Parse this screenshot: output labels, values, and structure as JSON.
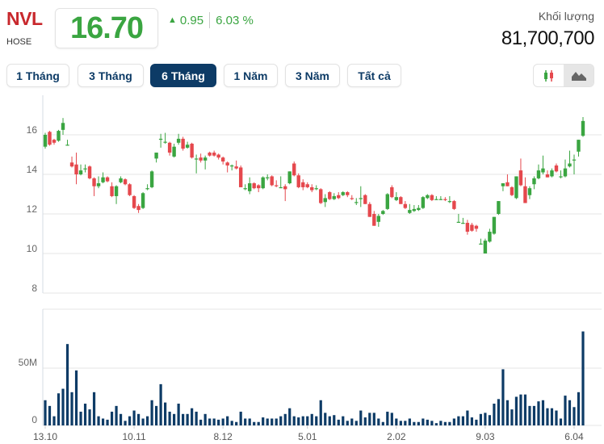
{
  "header": {
    "symbol": "NVL",
    "exchange": "HOSE",
    "price": "16.70",
    "change": "0.95",
    "change_pct": "6.03 %",
    "volume_label": "Khối lượng",
    "volume_value": "81,700,700"
  },
  "ranges": [
    {
      "label": "1 Tháng"
    },
    {
      "label": "3 Tháng"
    },
    {
      "label": "6 Tháng",
      "active": true
    },
    {
      "label": "1 Năm"
    },
    {
      "label": "3 Năm"
    },
    {
      "label": "Tất cả"
    }
  ],
  "chart_types": [
    {
      "icon": "candlestick-icon"
    },
    {
      "icon": "area-chart-icon",
      "active": true
    }
  ],
  "colors": {
    "up": "#3aa541",
    "down": "#e5484d",
    "volume": "#0d3b66",
    "grid": "#e6e6e6"
  },
  "chart_data": {
    "type": "candlestick",
    "price_axis": {
      "ticks": [
        8,
        10,
        12,
        14,
        16
      ],
      "range": [
        8,
        18
      ]
    },
    "volume_axis": {
      "ticks": [
        {
          "v": 0,
          "label": "0"
        },
        {
          "v": 50,
          "label": "50M"
        }
      ],
      "range": [
        0,
        100
      ],
      "unit": "M"
    },
    "x_labels": [
      {
        "i": 0,
        "label": "13.10"
      },
      {
        "i": 20,
        "label": "10.11"
      },
      {
        "i": 40,
        "label": "8.12"
      },
      {
        "i": 59,
        "label": "5.01"
      },
      {
        "i": 79,
        "label": "2.02"
      },
      {
        "i": 99,
        "label": "9.03"
      },
      {
        "i": 119,
        "label": "6.04"
      }
    ],
    "ohlc": [
      [
        15.4,
        16.1,
        15.3,
        16.0
      ],
      [
        16.15,
        16.2,
        15.45,
        15.5
      ],
      [
        15.75,
        15.8,
        15.5,
        15.6
      ],
      [
        15.7,
        16.25,
        15.65,
        16.2
      ],
      [
        16.25,
        16.85,
        16.0,
        16.6
      ],
      [
        15.5,
        15.75,
        15.45,
        15.5
      ],
      [
        14.6,
        14.9,
        14.35,
        14.4
      ],
      [
        14.5,
        15.1,
        13.5,
        14.0
      ],
      [
        14.0,
        14.5,
        13.95,
        14.2
      ],
      [
        14.3,
        14.5,
        14.1,
        14.3
      ],
      [
        14.4,
        14.45,
        13.75,
        13.8
      ],
      [
        13.8,
        13.85,
        12.9,
        13.4
      ],
      [
        13.4,
        13.9,
        13.3,
        13.55
      ],
      [
        13.6,
        14.1,
        13.55,
        13.85
      ],
      [
        13.85,
        13.9,
        13.6,
        13.65
      ],
      [
        13.4,
        13.6,
        12.85,
        12.9
      ],
      [
        12.9,
        13.45,
        12.5,
        13.4
      ],
      [
        13.6,
        13.9,
        13.55,
        13.8
      ],
      [
        13.75,
        13.8,
        13.45,
        13.5
      ],
      [
        13.5,
        13.55,
        12.9,
        12.95
      ],
      [
        12.9,
        12.95,
        12.25,
        12.3
      ],
      [
        12.4,
        12.5,
        12.05,
        12.2
      ],
      [
        12.3,
        13.1,
        12.25,
        13.05
      ],
      [
        13.3,
        13.5,
        13.2,
        13.3
      ],
      [
        13.35,
        14.2,
        13.3,
        14.15
      ],
      [
        14.8,
        15.1,
        14.6,
        15.1
      ],
      [
        15.8,
        16.05,
        15.35,
        15.8
      ],
      [
        15.65,
        16.1,
        15.55,
        15.65
      ],
      [
        15.6,
        15.65,
        14.95,
        15.1
      ],
      [
        14.9,
        15.55,
        14.85,
        15.4
      ],
      [
        15.6,
        16.05,
        15.5,
        15.8
      ],
      [
        15.8,
        15.9,
        15.2,
        15.3
      ],
      [
        15.35,
        15.65,
        15.3,
        15.5
      ],
      [
        15.55,
        15.6,
        14.8,
        14.85
      ],
      [
        14.8,
        15.0,
        14.05,
        14.8
      ],
      [
        14.85,
        15.05,
        14.6,
        14.7
      ],
      [
        14.7,
        14.95,
        14.25,
        14.85
      ],
      [
        15.1,
        15.15,
        14.9,
        14.95
      ],
      [
        15.1,
        15.2,
        14.9,
        14.95
      ],
      [
        15.0,
        15.05,
        14.75,
        14.85
      ],
      [
        14.85,
        14.9,
        14.5,
        14.65
      ],
      [
        14.6,
        14.65,
        14.1,
        14.45
      ],
      [
        14.45,
        14.5,
        14.2,
        14.45
      ],
      [
        14.4,
        14.7,
        14.25,
        14.3
      ],
      [
        14.35,
        14.45,
        13.35,
        13.35
      ],
      [
        13.3,
        13.5,
        13.2,
        13.3
      ],
      [
        13.15,
        13.85,
        13.0,
        13.55
      ],
      [
        13.55,
        13.6,
        13.25,
        13.3
      ],
      [
        13.45,
        13.5,
        13.1,
        13.3
      ],
      [
        13.3,
        13.9,
        13.25,
        13.85
      ],
      [
        13.85,
        14.0,
        13.7,
        13.85
      ],
      [
        13.9,
        13.95,
        13.4,
        13.45
      ],
      [
        13.45,
        13.7,
        13.35,
        13.4
      ],
      [
        13.35,
        13.9,
        13.3,
        13.35
      ],
      [
        13.4,
        13.5,
        12.65,
        13.25
      ],
      [
        13.55,
        14.15,
        13.5,
        14.15
      ],
      [
        14.55,
        14.65,
        13.9,
        13.95
      ],
      [
        13.95,
        14.05,
        13.3,
        13.35
      ],
      [
        13.6,
        13.75,
        13.2,
        13.35
      ],
      [
        13.5,
        13.6,
        13.3,
        13.35
      ],
      [
        13.35,
        13.5,
        13.1,
        13.2
      ],
      [
        13.3,
        13.45,
        13.2,
        13.3
      ],
      [
        13.25,
        13.3,
        12.5,
        12.55
      ],
      [
        12.6,
        13.0,
        12.35,
        12.8
      ],
      [
        13.1,
        13.15,
        12.7,
        12.75
      ],
      [
        12.75,
        13.05,
        12.7,
        12.9
      ],
      [
        12.95,
        13.1,
        12.75,
        12.8
      ],
      [
        12.95,
        13.15,
        12.9,
        13.1
      ],
      [
        13.1,
        13.15,
        12.85,
        12.95
      ],
      [
        12.8,
        12.95,
        12.7,
        12.75
      ],
      [
        12.6,
        12.8,
        12.45,
        12.6
      ],
      [
        12.75,
        13.4,
        12.35,
        12.8
      ],
      [
        12.95,
        13.0,
        12.5,
        12.5
      ],
      [
        12.5,
        12.6,
        11.85,
        11.85
      ],
      [
        12.0,
        12.15,
        11.4,
        11.4
      ],
      [
        11.6,
        12.0,
        11.35,
        11.9
      ],
      [
        12.0,
        12.2,
        11.95,
        12.15
      ],
      [
        12.25,
        13.05,
        12.2,
        13.0
      ],
      [
        13.35,
        13.45,
        12.8,
        12.85
      ],
      [
        12.7,
        13.1,
        12.65,
        12.85
      ],
      [
        12.85,
        12.9,
        12.5,
        12.5
      ],
      [
        12.5,
        12.65,
        12.25,
        12.3
      ],
      [
        12.05,
        12.5,
        12.0,
        12.2
      ],
      [
        12.15,
        12.45,
        12.1,
        12.25
      ],
      [
        12.2,
        12.45,
        12.15,
        12.3
      ],
      [
        12.3,
        12.9,
        12.25,
        12.85
      ],
      [
        12.8,
        13.0,
        12.75,
        12.95
      ],
      [
        12.95,
        13.0,
        12.65,
        12.7
      ],
      [
        12.75,
        12.9,
        12.7,
        12.75
      ],
      [
        12.75,
        12.9,
        12.7,
        12.75
      ],
      [
        12.75,
        12.85,
        12.65,
        12.7
      ],
      [
        12.65,
        12.9,
        12.55,
        12.65
      ],
      [
        12.65,
        12.7,
        12.2,
        12.25
      ],
      [
        11.6,
        12.0,
        11.55,
        11.6
      ],
      [
        11.55,
        11.8,
        11.5,
        11.55
      ],
      [
        11.55,
        11.7,
        10.95,
        11.1
      ],
      [
        11.45,
        11.55,
        11.1,
        11.15
      ],
      [
        11.4,
        11.45,
        11.1,
        11.25
      ],
      [
        10.5,
        10.75,
        10.45,
        10.5
      ],
      [
        10.0,
        10.75,
        10.0,
        10.65
      ],
      [
        10.6,
        11.25,
        10.55,
        11.1
      ],
      [
        11.0,
        11.85,
        10.95,
        11.85
      ],
      [
        12.0,
        12.65,
        11.95,
        12.65
      ],
      [
        13.4,
        13.55,
        13.15,
        13.55
      ],
      [
        13.6,
        14.0,
        13.4,
        13.4
      ],
      [
        13.35,
        13.4,
        12.9,
        12.95
      ],
      [
        12.8,
        13.9,
        12.75,
        13.9
      ],
      [
        14.2,
        14.8,
        13.4,
        13.45
      ],
      [
        13.4,
        13.85,
        12.55,
        12.55
      ],
      [
        12.95,
        13.4,
        12.75,
        13.3
      ],
      [
        13.5,
        13.9,
        13.25,
        13.8
      ],
      [
        13.8,
        14.5,
        13.75,
        14.2
      ],
      [
        14.1,
        14.95,
        14.0,
        14.3
      ],
      [
        14.0,
        14.2,
        13.85,
        13.85
      ],
      [
        13.9,
        14.3,
        13.85,
        14.2
      ],
      [
        14.45,
        14.55,
        14.1,
        14.15
      ],
      [
        13.9,
        14.2,
        13.8,
        13.9
      ],
      [
        13.9,
        14.75,
        13.85,
        14.3
      ],
      [
        14.4,
        15.2,
        14.35,
        14.55
      ],
      [
        14.75,
        15.0,
        14.0,
        14.75
      ],
      [
        15.15,
        15.75,
        14.9,
        15.75
      ],
      [
        15.95,
        16.9,
        15.9,
        16.7
      ]
    ],
    "volume": [
      22,
      17,
      8,
      28,
      32,
      71,
      29,
      48,
      12,
      19,
      14,
      29,
      8,
      6,
      5,
      12,
      17,
      10,
      4,
      8,
      13,
      10,
      6,
      8,
      22,
      17,
      36,
      20,
      12,
      10,
      19,
      10,
      10,
      15,
      12,
      5,
      10,
      6,
      6,
      5,
      6,
      8,
      4,
      3,
      12,
      6,
      6,
      3,
      3,
      7,
      6,
      6,
      6,
      8,
      10,
      15,
      8,
      7,
      8,
      8,
      10,
      8,
      22,
      11,
      8,
      9,
      5,
      8,
      4,
      6,
      4,
      13,
      7,
      11,
      11,
      6,
      3,
      12,
      11,
      6,
      4,
      4,
      6,
      3,
      3,
      6,
      5,
      4,
      2,
      4,
      3,
      3,
      6,
      8,
      8,
      13,
      7,
      5,
      10,
      11,
      9,
      19,
      23,
      49,
      22,
      14,
      25,
      27,
      27,
      17,
      17,
      21,
      22,
      15,
      15,
      13,
      6,
      26,
      22,
      16,
      29,
      82
    ]
  }
}
